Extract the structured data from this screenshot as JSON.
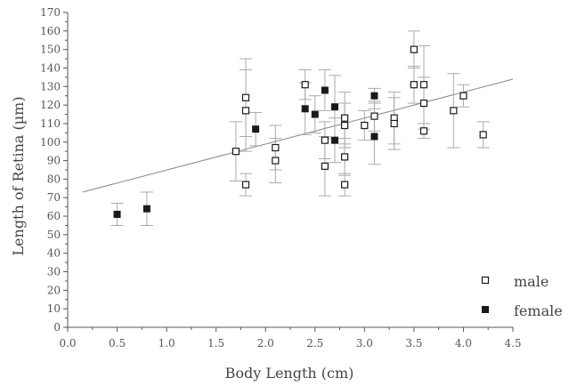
{
  "chart_data": {
    "type": "scatter",
    "xlabel": "Body Length (cm)",
    "ylabel": "Length of Retina (µm)",
    "xlim": [
      0.0,
      4.5
    ],
    "ylim": [
      0,
      170
    ],
    "x_ticks": [
      "0.0",
      "0.5",
      "1.0",
      "1.5",
      "2.0",
      "2.5",
      "3.0",
      "3.5",
      "4.0",
      "4.5"
    ],
    "x_tick_values": [
      0.0,
      0.5,
      1.0,
      1.5,
      2.0,
      2.5,
      3.0,
      3.5,
      4.0,
      4.5
    ],
    "y_ticks": [
      "0",
      "10",
      "20",
      "30",
      "40",
      "50",
      "60",
      "70",
      "80",
      "90",
      "100",
      "110",
      "120",
      "130",
      "140",
      "150",
      "160",
      "170"
    ],
    "y_tick_values": [
      0,
      10,
      20,
      30,
      40,
      50,
      60,
      70,
      80,
      90,
      100,
      110,
      120,
      130,
      140,
      150,
      160,
      170
    ],
    "grid": false,
    "legend_position": "bottom-right",
    "colors": {
      "axis": "#555555",
      "marker": "#1a1a1a",
      "errorbar": "#aaaaaa",
      "fit_line": "#888888"
    },
    "series": [
      {
        "name": "male",
        "marker": "open-square",
        "points": [
          {
            "x": 1.7,
            "y": 95,
            "err": 16
          },
          {
            "x": 1.8,
            "y": 124,
            "err": 21
          },
          {
            "x": 1.8,
            "y": 117,
            "err": 22
          },
          {
            "x": 1.8,
            "y": 77,
            "err": 6
          },
          {
            "x": 2.1,
            "y": 97,
            "err": 12
          },
          {
            "x": 2.1,
            "y": 90,
            "err": 12
          },
          {
            "x": 2.4,
            "y": 131,
            "err": 8
          },
          {
            "x": 2.6,
            "y": 101,
            "err": 10
          },
          {
            "x": 2.6,
            "y": 87,
            "err": 16
          },
          {
            "x": 2.8,
            "y": 113,
            "err": 14
          },
          {
            "x": 2.8,
            "y": 109,
            "err": 12
          },
          {
            "x": 2.8,
            "y": 92,
            "err": 10
          },
          {
            "x": 2.8,
            "y": 77,
            "err": 6
          },
          {
            "x": 3.0,
            "y": 109,
            "err": 8
          },
          {
            "x": 3.1,
            "y": 114,
            "err": 8
          },
          {
            "x": 3.3,
            "y": 113,
            "err": 14
          },
          {
            "x": 3.3,
            "y": 110,
            "err": 14
          },
          {
            "x": 3.5,
            "y": 150,
            "err": 10
          },
          {
            "x": 3.5,
            "y": 131,
            "err": 10
          },
          {
            "x": 3.6,
            "y": 131,
            "err": 21
          },
          {
            "x": 3.6,
            "y": 121,
            "err": 14
          },
          {
            "x": 3.6,
            "y": 106,
            "err": 4
          },
          {
            "x": 3.9,
            "y": 117,
            "err": 20
          },
          {
            "x": 4.0,
            "y": 125,
            "err": 6
          },
          {
            "x": 4.2,
            "y": 104,
            "err": 7
          }
        ]
      },
      {
        "name": "female",
        "marker": "filled-square",
        "points": [
          {
            "x": 0.5,
            "y": 61,
            "err": 6
          },
          {
            "x": 0.8,
            "y": 64,
            "err": 9
          },
          {
            "x": 1.9,
            "y": 107,
            "err": 9
          },
          {
            "x": 2.4,
            "y": 118,
            "err": 14
          },
          {
            "x": 2.5,
            "y": 115,
            "err": 10
          },
          {
            "x": 2.6,
            "y": 128,
            "err": 11
          },
          {
            "x": 2.7,
            "y": 119,
            "err": 17
          },
          {
            "x": 2.7,
            "y": 101,
            "err": 12
          },
          {
            "x": 3.1,
            "y": 125,
            "err": 4
          },
          {
            "x": 3.1,
            "y": 103,
            "err": 15
          }
        ]
      }
    ],
    "fit_line": {
      "x": [
        0.15,
        4.5
      ],
      "y": [
        73,
        134
      ]
    }
  }
}
